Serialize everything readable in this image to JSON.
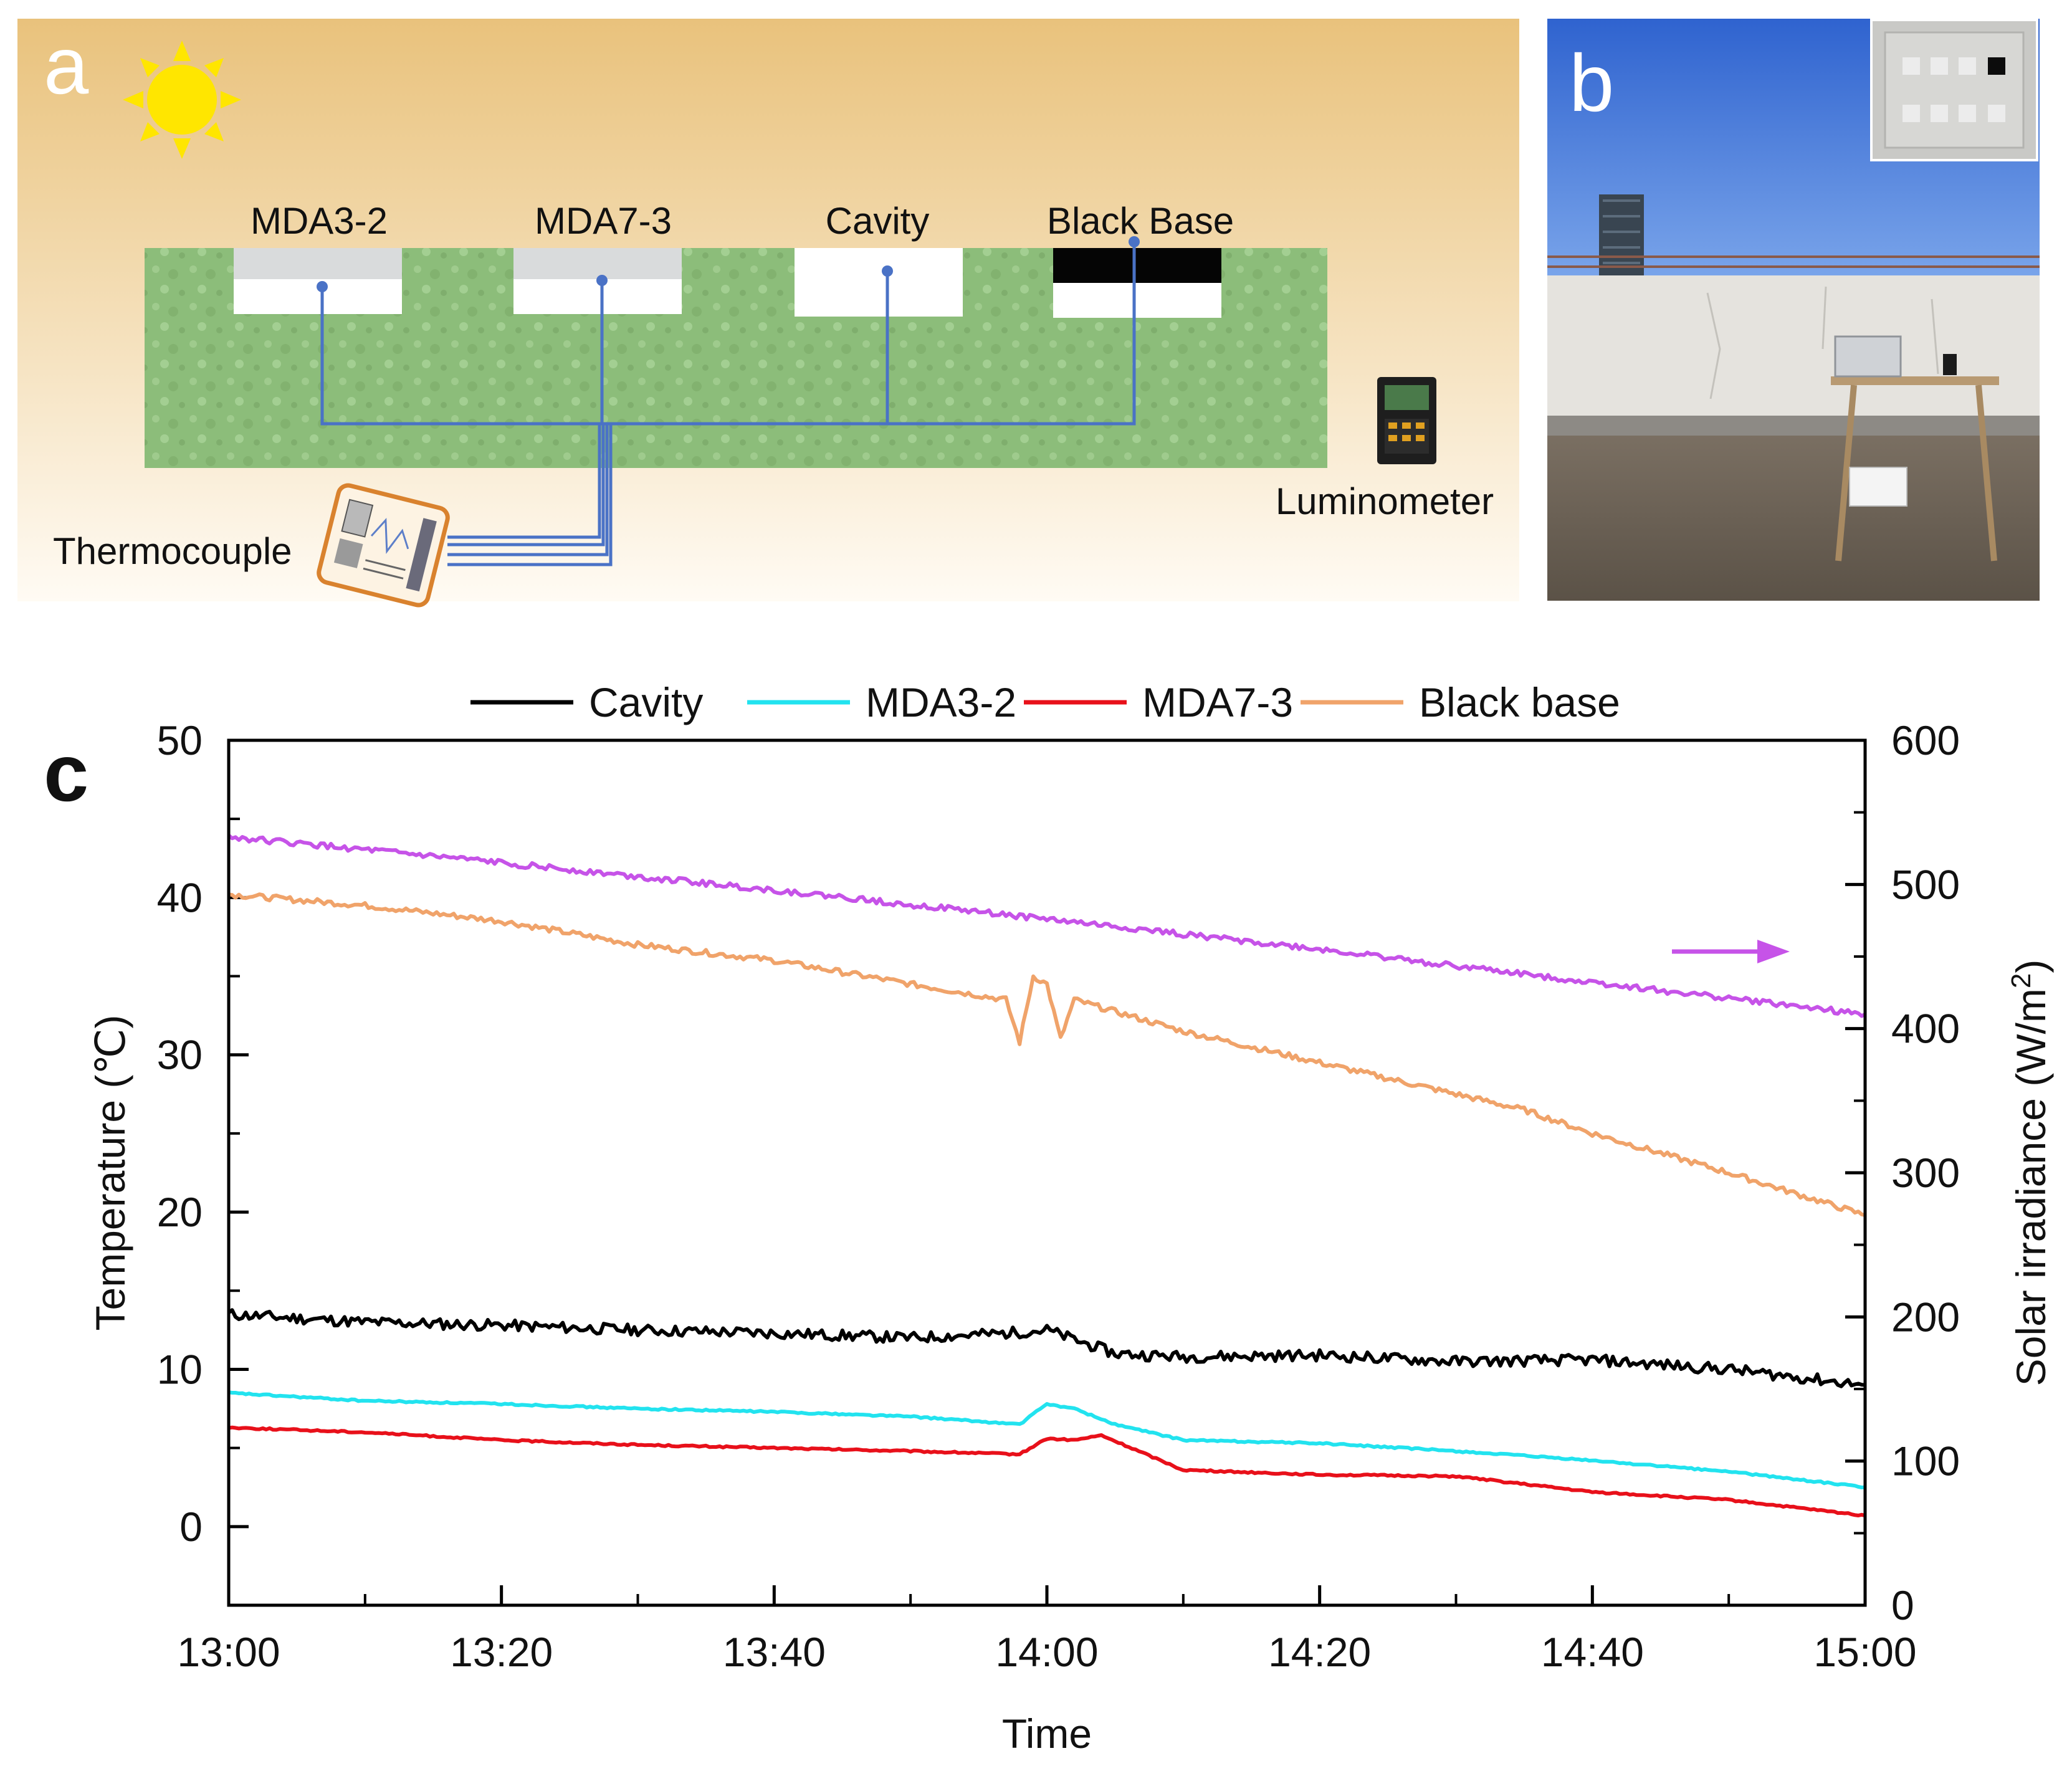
{
  "panel_a": {
    "letter": "a",
    "sample_labels": [
      "MDA3-2",
      "MDA7-3",
      "Cavity",
      "Black Base"
    ],
    "thermocouple_label": "Thermocouple",
    "luminometer_label": "Luminometer",
    "colors": {
      "wire": "#4a72c6",
      "substrate": "#8cbd7a",
      "sky_top": "#e8c27a",
      "sun": "#ffe600"
    }
  },
  "panel_b": {
    "letter": "b",
    "colors": {
      "sky": "#3b6fd4",
      "wall": "#e6e4df",
      "ground": "#6e6458"
    }
  },
  "panel_c": {
    "letter": "c"
  },
  "chart_data": {
    "type": "line",
    "xlabel": "Time",
    "ylabel": "Temperature (℃)",
    "y2label_prefix": "Solar irradiance (W/m",
    "y2label_superscript": "2",
    "y2label_suffix": ")",
    "x_start_minutes": 780,
    "x_end_minutes": 900,
    "xticks": [
      "13:00",
      "13:20",
      "13:40",
      "14:00",
      "14:20",
      "14:40",
      "15:00"
    ],
    "ylim": [
      -5,
      50
    ],
    "yticks": [
      "0",
      "10",
      "20",
      "30",
      "40",
      "50"
    ],
    "y2lim": [
      0,
      600
    ],
    "y2ticks": [
      "0",
      "100",
      "200",
      "300",
      "400",
      "500",
      "600"
    ],
    "legend_position": "top",
    "series": [
      {
        "name": "Cavity",
        "axis": "left",
        "color": "#000000",
        "x": [
          780,
          790,
          800,
          810,
          820,
          830,
          837,
          840,
          845,
          850,
          860,
          870,
          880,
          890,
          900
        ],
        "values": [
          13.5,
          13.0,
          12.8,
          12.5,
          12.3,
          12.0,
          12.3,
          12.5,
          11.0,
          10.8,
          10.9,
          10.5,
          10.6,
          10.0,
          9.0
        ]
      },
      {
        "name": "MDA3-2",
        "axis": "left",
        "color": "#22e3ef",
        "x": [
          780,
          790,
          800,
          810,
          820,
          830,
          838,
          840,
          842,
          845,
          850,
          860,
          870,
          880,
          890,
          900
        ],
        "values": [
          8.5,
          8.0,
          7.8,
          7.5,
          7.3,
          7.0,
          6.5,
          7.8,
          7.5,
          6.5,
          5.5,
          5.3,
          4.8,
          4.2,
          3.5,
          2.5
        ]
      },
      {
        "name": "MDA7-3",
        "axis": "left",
        "color": "#e8101a",
        "x": [
          780,
          790,
          800,
          810,
          820,
          830,
          838,
          840,
          842,
          844,
          850,
          860,
          870,
          880,
          890,
          900
        ],
        "values": [
          6.3,
          6.0,
          5.5,
          5.2,
          5.0,
          4.8,
          4.6,
          5.6,
          5.5,
          5.8,
          3.6,
          3.3,
          3.2,
          2.2,
          1.7,
          0.7
        ]
      },
      {
        "name": "Black base",
        "axis": "left",
        "color": "#f0a36a",
        "x": [
          780,
          790,
          800,
          810,
          820,
          830,
          837,
          838,
          839,
          840,
          841,
          842,
          850,
          860,
          870,
          875,
          880,
          890,
          900
        ],
        "values": [
          40.2,
          39.5,
          38.5,
          37.0,
          36.0,
          34.5,
          33.5,
          30.8,
          35.0,
          34.5,
          31.0,
          33.5,
          31.5,
          29.5,
          27.5,
          26.5,
          25.0,
          22.5,
          19.8
        ]
      },
      {
        "name": "Solar irradiance",
        "axis": "right",
        "color": "#c653e8",
        "in_legend": false,
        "x": [
          780,
          800,
          820,
          840,
          860,
          880,
          900
        ],
        "values": [
          533,
          515,
          496,
          476,
          455,
          432,
          410
        ]
      }
    ]
  }
}
